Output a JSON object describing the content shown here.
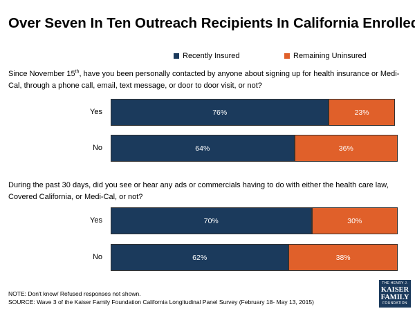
{
  "title": "Over Seven In Ten Outreach Recipients In California Enrolled",
  "legend": [
    {
      "label": "Recently Insured",
      "color": "#1b3a5c"
    },
    {
      "label": "Remaining Uninsured",
      "color": "#e0602a"
    }
  ],
  "questions": [
    {
      "text_before": "Since November 15",
      "sup": "th",
      "text_after": ", have you been personally contacted by anyone about signing up for health insurance or Medi-Cal, through a phone call, email, text message, or door to door visit, or not?"
    },
    {
      "text": "During the past 30 days, did you see or hear any ads or commercials having to do with either the health care law, Covered California, or Medi-Cal, or not?"
    }
  ],
  "chart_data": {
    "type": "bar",
    "orientation": "horizontal",
    "stacked": true,
    "title": "Over Seven In Ten Outreach Recipients In California Enrolled",
    "series_names": [
      "Recently Insured",
      "Remaining Uninsured"
    ],
    "groups": [
      {
        "question_index": 0,
        "bars": [
          {
            "category": "Yes",
            "values": [
              76,
              23
            ],
            "labels": [
              "76%",
              "23%"
            ]
          },
          {
            "category": "No",
            "values": [
              64,
              36
            ],
            "labels": [
              "64%",
              "36%"
            ]
          }
        ]
      },
      {
        "question_index": 1,
        "bars": [
          {
            "category": "Yes",
            "values": [
              70,
              30
            ],
            "labels": [
              "70%",
              "30%"
            ]
          },
          {
            "category": "No",
            "values": [
              62,
              38
            ],
            "labels": [
              "62%",
              "38%"
            ]
          }
        ]
      }
    ],
    "xlim": [
      0,
      100
    ],
    "grid": false,
    "legend_position": "top-right"
  },
  "footer": {
    "note": "NOTE: Don't know/ Refused responses not shown.",
    "source": "SOURCE: Wave 3 of the Kaiser Family Foundation California Longitudinal Panel Survey (February 18- May 13, 2015)"
  },
  "logo": {
    "line1": "THE HENRY J.",
    "line2": "KAISER",
    "line3": "FAMILY",
    "line4": "FOUNDATION"
  }
}
